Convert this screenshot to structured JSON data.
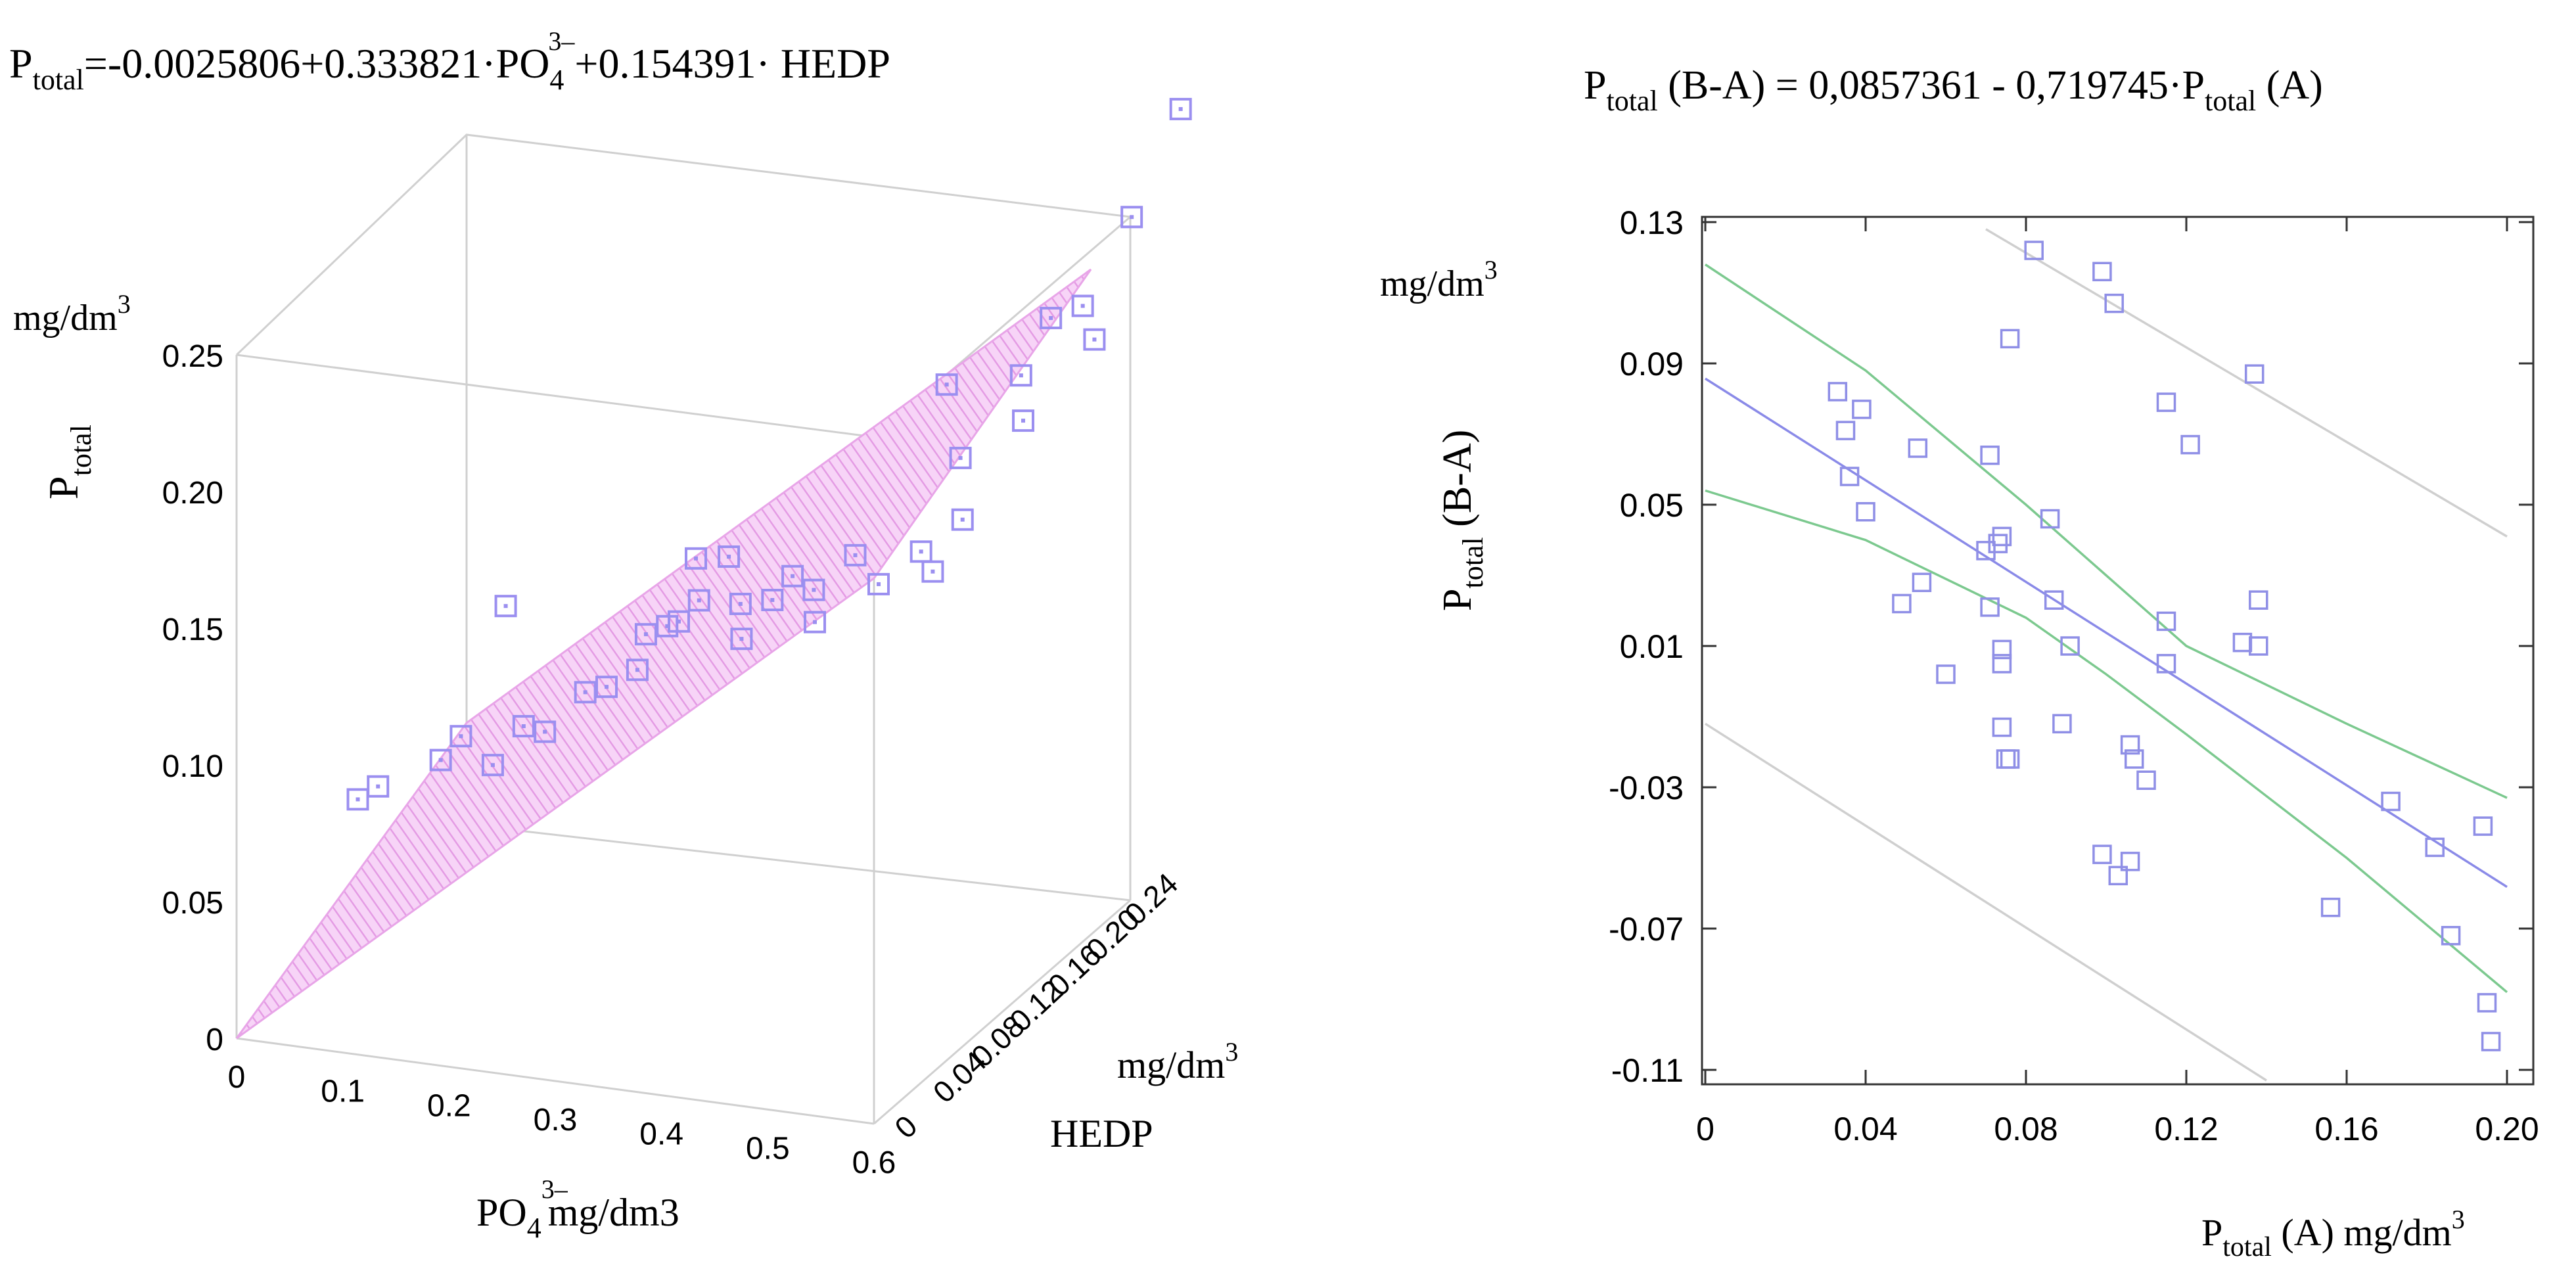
{
  "chart_data": [
    {
      "type": "3d-scatter-with-regression-plane",
      "title": {
        "lhs": "P",
        "lhs_sub": "total",
        "eq": "=-0.0025806+0.333821·",
        "ion": "PO",
        "ion_sub": "4",
        "ion_sup": "3–",
        "rest": "+0.154391· HEDP"
      },
      "z_axis": {
        "title": "P",
        "title_sub": "total",
        "unit": "mg/dm",
        "unit_sup": "3",
        "ticks": [
          "0",
          "0.05",
          "0.10",
          "0.15",
          "0.20",
          "0.25"
        ],
        "range": [
          0,
          0.25
        ]
      },
      "x_axis": {
        "title": "PO",
        "title_sub": "4",
        "title_sup": "3–",
        "unit": "mg/dm3",
        "ticks": [
          "0",
          "0.1",
          "0.2",
          "0.3",
          "0.4",
          "0.5",
          "0.6"
        ],
        "range": [
          0,
          0.6
        ]
      },
      "y_axis": {
        "title": "HEDP",
        "unit": "mg/dm",
        "unit_sup": "3",
        "ticks": [
          "0",
          "0.04",
          "0.08",
          "0.12",
          "0.16",
          "0.20",
          "0.24"
        ],
        "range": [
          0,
          0.24
        ]
      },
      "plane": {
        "intercept": -0.0025806,
        "coef_x": 0.333821,
        "coef_y": 0.154391
      },
      "points": [
        {
          "x": 0.06,
          "y": 0.06,
          "z": 0.071
        },
        {
          "x": 0.07,
          "y": 0.07,
          "z": 0.073
        },
        {
          "x": 0.12,
          "y": 0.08,
          "z": 0.082
        },
        {
          "x": 0.13,
          "y": 0.09,
          "z": 0.088
        },
        {
          "x": 0.1,
          "y": 0.17,
          "z": 0.108
        },
        {
          "x": 0.16,
          "y": 0.09,
          "z": 0.079
        },
        {
          "x": 0.18,
          "y": 0.1,
          "z": 0.091
        },
        {
          "x": 0.2,
          "y": 0.1,
          "z": 0.09
        },
        {
          "x": 0.22,
          "y": 0.12,
          "z": 0.099
        },
        {
          "x": 0.24,
          "y": 0.12,
          "z": 0.102
        },
        {
          "x": 0.26,
          "y": 0.13,
          "z": 0.106
        },
        {
          "x": 0.25,
          "y": 0.15,
          "z": 0.112
        },
        {
          "x": 0.27,
          "y": 0.15,
          "z": 0.116
        },
        {
          "x": 0.29,
          "y": 0.14,
          "z": 0.122
        },
        {
          "x": 0.3,
          "y": 0.15,
          "z": 0.127
        },
        {
          "x": 0.27,
          "y": 0.18,
          "z": 0.131
        },
        {
          "x": 0.31,
          "y": 0.17,
          "z": 0.137
        },
        {
          "x": 0.33,
          "y": 0.16,
          "z": 0.124
        },
        {
          "x": 0.34,
          "y": 0.15,
          "z": 0.115
        },
        {
          "x": 0.36,
          "y": 0.16,
          "z": 0.127
        },
        {
          "x": 0.37,
          "y": 0.17,
          "z": 0.133
        },
        {
          "x": 0.39,
          "y": 0.17,
          "z": 0.129
        },
        {
          "x": 0.4,
          "y": 0.16,
          "z": 0.121
        },
        {
          "x": 0.42,
          "y": 0.18,
          "z": 0.14
        },
        {
          "x": 0.46,
          "y": 0.16,
          "z": 0.138
        },
        {
          "x": 0.5,
          "y": 0.16,
          "z": 0.152
        },
        {
          "x": 0.52,
          "y": 0.15,
          "z": 0.149
        },
        {
          "x": 0.53,
          "y": 0.17,
          "z": 0.162
        },
        {
          "x": 0.51,
          "y": 0.19,
          "z": 0.177
        },
        {
          "x": 0.47,
          "y": 0.22,
          "z": 0.192
        },
        {
          "x": 0.54,
          "y": 0.22,
          "z": 0.199
        },
        {
          "x": 0.56,
          "y": 0.2,
          "z": 0.19
        },
        {
          "x": 0.55,
          "y": 0.24,
          "z": 0.214
        },
        {
          "x": 0.58,
          "y": 0.24,
          "z": 0.22
        },
        {
          "x": 0.6,
          "y": 0.23,
          "z": 0.212
        },
        {
          "x": 0.59,
          "y": 0.28,
          "z": 0.24
        },
        {
          "x": 0.6,
          "y": 0.32,
          "z": 0.267
        }
      ]
    },
    {
      "type": "scatter",
      "title": {
        "lhs": "P",
        "lhs_sub": "total",
        "rest": " (B-A) = 0,0857361 - 0,719745·",
        "p2": "P",
        "p2_sub": "total",
        "p2_rest": " (A)"
      },
      "ylabel": {
        "text": "P",
        "sub": "total",
        "rest": " (B-A)",
        "unit": "mg/dm",
        "unit_sup": "3"
      },
      "xlabel": {
        "text": "P",
        "sub": "total",
        "rest": " (A)  mg/dm",
        "unit_sup": "3"
      },
      "xlim": [
        0,
        0.2
      ],
      "ylim": [
        -0.11,
        0.13
      ],
      "x_ticks": [
        "0",
        "0.04",
        "0.08",
        "0.12",
        "0.16",
        "0.20"
      ],
      "y_ticks": [
        "0.13",
        "0.09",
        "0.05",
        "0.01",
        "-0.03",
        "-0.07",
        "-0.11"
      ],
      "regression": {
        "intercept": 0.0857361,
        "slope": -0.719745
      },
      "lines": [
        {
          "name": "fit",
          "color": "#8a8ae8",
          "points": [
            [
              0.0,
              0.0857
            ],
            [
              0.2,
              -0.0582
            ]
          ]
        },
        {
          "name": "confidence-upper",
          "color": "#7cc98f",
          "points": [
            [
              0.0,
              0.118
            ],
            [
              0.04,
              0.088
            ],
            [
              0.08,
              0.05
            ],
            [
              0.1,
              0.03
            ],
            [
              0.12,
              0.01
            ],
            [
              0.16,
              -0.012
            ],
            [
              0.2,
              -0.033
            ]
          ]
        },
        {
          "name": "confidence-lower",
          "color": "#7cc98f",
          "points": [
            [
              0.0,
              0.054
            ],
            [
              0.04,
              0.04
            ],
            [
              0.08,
              0.018
            ],
            [
              0.1,
              0.002
            ],
            [
              0.12,
              -0.015
            ],
            [
              0.16,
              -0.05
            ],
            [
              0.2,
              -0.088
            ]
          ]
        },
        {
          "name": "prediction-upper",
          "color": "#cfcfcf",
          "points": [
            [
              0.07,
              0.128
            ],
            [
              0.2,
              0.041
            ]
          ]
        },
        {
          "name": "prediction-lower",
          "color": "#cfcfcf",
          "points": [
            [
              0.0,
              -0.012
            ],
            [
              0.14,
              -0.113
            ]
          ]
        }
      ],
      "points": [
        [
          0.033,
          0.082
        ],
        [
          0.035,
          0.071
        ],
        [
          0.039,
          0.077
        ],
        [
          0.036,
          0.058
        ],
        [
          0.04,
          0.048
        ],
        [
          0.053,
          0.066
        ],
        [
          0.049,
          0.022
        ],
        [
          0.054,
          0.028
        ],
        [
          0.06,
          0.002
        ],
        [
          0.07,
          0.037
        ],
        [
          0.071,
          0.064
        ],
        [
          0.071,
          0.021
        ],
        [
          0.073,
          0.039
        ],
        [
          0.074,
          0.041
        ],
        [
          0.074,
          0.009
        ],
        [
          0.074,
          0.005
        ],
        [
          0.074,
          -0.013
        ],
        [
          0.076,
          -0.022
        ],
        [
          0.075,
          -0.022
        ],
        [
          0.076,
          0.097
        ],
        [
          0.082,
          0.122
        ],
        [
          0.086,
          0.046
        ],
        [
          0.087,
          0.023
        ],
        [
          0.089,
          -0.012
        ],
        [
          0.091,
          0.01
        ],
        [
          0.099,
          0.116
        ],
        [
          0.099,
          -0.049
        ],
        [
          0.102,
          0.107
        ],
        [
          0.103,
          -0.055
        ],
        [
          0.106,
          -0.051
        ],
        [
          0.106,
          -0.018
        ],
        [
          0.107,
          -0.022
        ],
        [
          0.11,
          -0.028
        ],
        [
          0.115,
          0.017
        ],
        [
          0.115,
          0.079
        ],
        [
          0.115,
          0.005
        ],
        [
          0.121,
          0.067
        ],
        [
          0.134,
          0.011
        ],
        [
          0.137,
          0.087
        ],
        [
          0.138,
          0.023
        ],
        [
          0.138,
          0.01
        ],
        [
          0.156,
          -0.064
        ],
        [
          0.171,
          -0.034
        ],
        [
          0.182,
          -0.047
        ],
        [
          0.186,
          -0.072
        ],
        [
          0.194,
          -0.041
        ],
        [
          0.195,
          -0.091
        ],
        [
          0.196,
          -0.102
        ]
      ]
    }
  ]
}
